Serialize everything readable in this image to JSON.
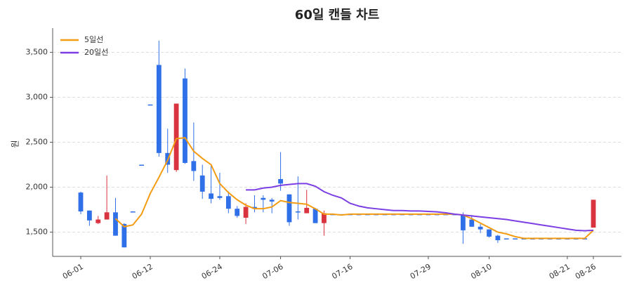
{
  "chart_data": {
    "type": "candlestick",
    "title": "60일 캔들 차트",
    "y_label": "원",
    "categories": [
      "06-01",
      null,
      null,
      null,
      null,
      null,
      null,
      null,
      "06-12",
      null,
      null,
      null,
      null,
      null,
      null,
      null,
      "06-24",
      null,
      null,
      null,
      null,
      null,
      null,
      "07-06",
      null,
      null,
      null,
      null,
      null,
      null,
      null,
      "07-16",
      null,
      null,
      null,
      null,
      null,
      null,
      null,
      null,
      "07-29",
      null,
      null,
      null,
      null,
      null,
      null,
      "08-10",
      null,
      null,
      null,
      null,
      null,
      null,
      null,
      null,
      "08-21",
      null,
      null,
      "08-26"
    ],
    "open": [
      1940,
      1740,
      1600,
      1640,
      1720,
      1590,
      1730,
      2250,
      2920,
      3360,
      2380,
      2190,
      3210,
      2290,
      2130,
      1930,
      1900,
      1900,
      1760,
      1660,
      1780,
      1880,
      1860,
      2090,
      1920,
      1730,
      1710,
      1760,
      1600,
      1700,
      1700,
      1700,
      1700,
      1700,
      1700,
      1700,
      1700,
      1700,
      1700,
      1700,
      1700,
      1700,
      1700,
      1700,
      1690,
      1640,
      1560,
      1530,
      1460,
      1430,
      1430,
      1430,
      1430,
      1430,
      1430,
      1430,
      1430,
      1430,
      1430,
      1550
    ],
    "high": [
      1950,
      1740,
      1680,
      2130,
      1880,
      1600,
      1730,
      2250,
      2920,
      3630,
      2650,
      2930,
      3320,
      2720,
      2250,
      2250,
      2160,
      1950,
      1790,
      1820,
      1910,
      1910,
      1880,
      2390,
      1920,
      2120,
      1970,
      1770,
      1740,
      1700,
      1700,
      1700,
      1700,
      1700,
      1700,
      1700,
      1700,
      1700,
      1700,
      1700,
      1700,
      1700,
      1700,
      1700,
      1720,
      1690,
      1590,
      1530,
      1470,
      1430,
      1430,
      1430,
      1430,
      1430,
      1430,
      1430,
      1430,
      1430,
      1430,
      1860
    ],
    "low": [
      1700,
      1570,
      1590,
      1640,
      1460,
      1330,
      1730,
      2250,
      2920,
      2340,
      2160,
      2170,
      2260,
      2070,
      1870,
      1820,
      1860,
      1710,
      1660,
      1590,
      1720,
      1720,
      1710,
      1960,
      1570,
      1640,
      1710,
      1600,
      1460,
      1700,
      1700,
      1700,
      1700,
      1700,
      1700,
      1700,
      1700,
      1700,
      1700,
      1700,
      1700,
      1700,
      1700,
      1700,
      1370,
      1560,
      1490,
      1440,
      1380,
      1430,
      1430,
      1430,
      1430,
      1430,
      1430,
      1430,
      1430,
      1430,
      1430,
      1550
    ],
    "close": [
      1730,
      1630,
      1640,
      1720,
      1460,
      1330,
      1730,
      2250,
      2920,
      2380,
      2250,
      2930,
      2270,
      2180,
      1950,
      1870,
      1880,
      1760,
      1680,
      1780,
      1760,
      1860,
      1840,
      2040,
      1610,
      1730,
      1770,
      1600,
      1710,
      1700,
      1700,
      1700,
      1700,
      1700,
      1700,
      1700,
      1700,
      1700,
      1700,
      1700,
      1700,
      1700,
      1700,
      1700,
      1520,
      1560,
      1530,
      1450,
      1410,
      1430,
      1430,
      1430,
      1430,
      1430,
      1430,
      1430,
      1430,
      1430,
      1430,
      1860
    ],
    "up_color": "#d9333f",
    "down_color": "#2f6fe8",
    "series": [
      {
        "name": "5일선",
        "color": "#f39c12",
        "values": [
          null,
          null,
          null,
          null,
          1650,
          1560,
          1580,
          1700,
          1930,
          2110,
          2300,
          2540,
          2550,
          2400,
          2320,
          2250,
          2040,
          1940,
          1860,
          1800,
          1760,
          1760,
          1780,
          1850,
          1830,
          1820,
          1810,
          1760,
          1700,
          1700,
          1690,
          1700,
          1700,
          1700,
          1700,
          1700,
          1700,
          1700,
          1700,
          1700,
          1700,
          1700,
          1700,
          1700,
          1690,
          1650,
          1600,
          1550,
          1500,
          1480,
          1450,
          1430,
          1430,
          1430,
          1430,
          1430,
          1430,
          1430,
          1430,
          1520
        ]
      },
      {
        "name": "20일선",
        "color": "#7b3fe4",
        "values": [
          null,
          null,
          null,
          null,
          null,
          null,
          null,
          null,
          null,
          null,
          null,
          null,
          null,
          null,
          null,
          null,
          null,
          null,
          null,
          1970,
          1970,
          1990,
          2000,
          2020,
          2030,
          2040,
          2040,
          2010,
          1950,
          1910,
          1880,
          1820,
          1790,
          1770,
          1760,
          1750,
          1740,
          1740,
          1735,
          1735,
          1730,
          1725,
          1715,
          1700,
          1690,
          1680,
          1670,
          1660,
          1650,
          1640,
          1625,
          1610,
          1595,
          1580,
          1565,
          1550,
          1535,
          1520,
          1515,
          1520
        ]
      }
    ],
    "ylim": [
      1230,
      3770
    ],
    "yticks": [
      {
        "value": 1500,
        "label": "1,500"
      },
      {
        "value": 2000,
        "label": "2,000"
      },
      {
        "value": 2500,
        "label": "2,500"
      },
      {
        "value": 3000,
        "label": "3,000"
      },
      {
        "value": 3500,
        "label": "3,500"
      }
    ],
    "grid": true,
    "legend": "upper left"
  }
}
